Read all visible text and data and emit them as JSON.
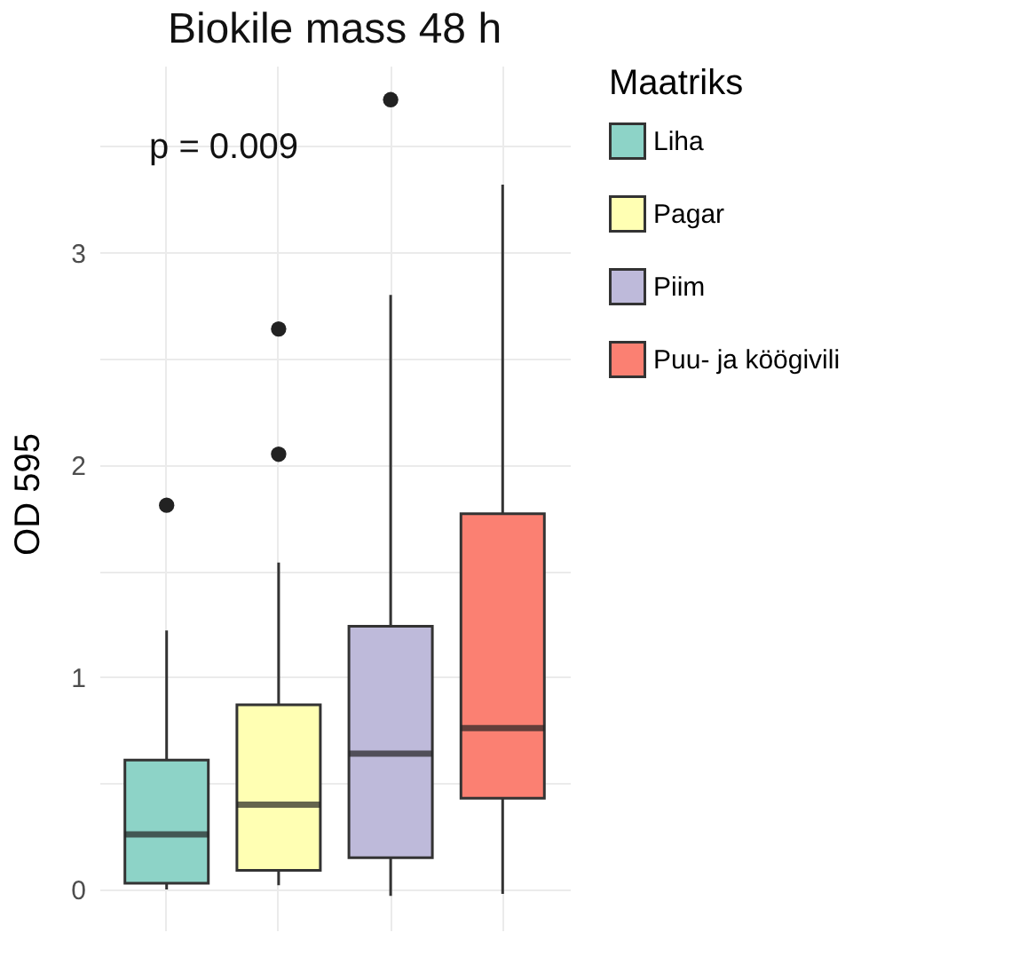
{
  "chart_data": {
    "type": "box",
    "title": "Biokile mass 48 h",
    "ylabel": "OD 595",
    "legend_title": "Maatriks",
    "categories": [
      null,
      null,
      null,
      null
    ],
    "series": [
      {
        "name": "Liha",
        "color": "#8dd3c7",
        "boxes": [
          {
            "low": 0,
            "q1": 0.03,
            "median": 0.26,
            "q3": 0.61,
            "high": 1.22,
            "outliers": [
              1.81
            ]
          },
          null,
          null,
          null
        ]
      },
      {
        "name": "Pagar",
        "color": "#ffffb3",
        "boxes": [
          null,
          {
            "low": 0.02,
            "q1": 0.09,
            "median": 0.4,
            "q3": 0.87,
            "high": 1.54,
            "outliers": [
              2.05,
              2.64
            ]
          },
          null,
          null
        ]
      },
      {
        "name": "Piim",
        "color": "#bebada",
        "boxes": [
          null,
          null,
          {
            "low": -0.03,
            "q1": 0.15,
            "median": 0.64,
            "q3": 1.24,
            "high": 2.8,
            "outliers": [
              3.72
            ]
          },
          null
        ]
      },
      {
        "name": "Puu- ja köögivili",
        "color": "#fb8072",
        "boxes": [
          null,
          null,
          null,
          {
            "low": -0.02,
            "q1": 0.43,
            "median": 0.76,
            "q3": 1.77,
            "high": 3.32
          }
        ]
      }
    ],
    "ylim": [
      -0.15,
      3.88
    ],
    "yticks": [
      0,
      {
        "value": 0.5,
        "label": null
      },
      1,
      {
        "value": 1.5,
        "label": null
      },
      2,
      {
        "value": 2.5,
        "label": null
      },
      3,
      {
        "value": 3.5,
        "label": null
      }
    ],
    "grid": true,
    "legend": "right",
    "tick_labels": "y",
    "annotations": [
      "p = 0.009"
    ]
  }
}
